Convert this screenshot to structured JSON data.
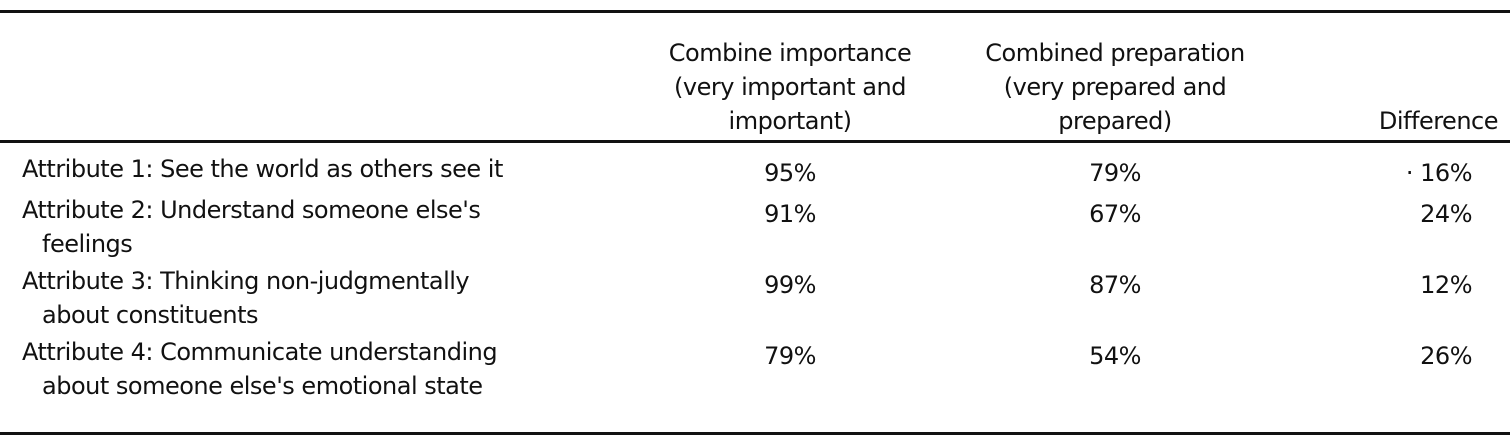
{
  "table": {
    "headers": [
      "",
      "Combine importance (very important and important)",
      "Combined preparation (very prepared and prepared)",
      "Difference"
    ],
    "header_lines": [
      [],
      [
        "Combine importance",
        "(very important and",
        "important)"
      ],
      [
        "Combined preparation",
        "(very prepared and",
        "prepared)"
      ],
      [
        "Difference"
      ]
    ],
    "rows": [
      {
        "label_lines": [
          "Attribute 1: See the world as others see it"
        ],
        "importance": "95%",
        "preparation": "79%",
        "difference": "· 16%"
      },
      {
        "label_lines": [
          "Attribute 2: Understand someone else's",
          "feelings"
        ],
        "importance": "91%",
        "preparation": "67%",
        "difference": "24%"
      },
      {
        "label_lines": [
          "Attribute 3: Thinking non-judgmentally",
          "about constituents"
        ],
        "importance": "99%",
        "preparation": "87%",
        "difference": "12%"
      },
      {
        "label_lines": [
          "Attribute 4: Communicate understanding",
          "about someone else's emotional state"
        ],
        "importance": "79%",
        "preparation": "54%",
        "difference": "26%"
      }
    ]
  }
}
